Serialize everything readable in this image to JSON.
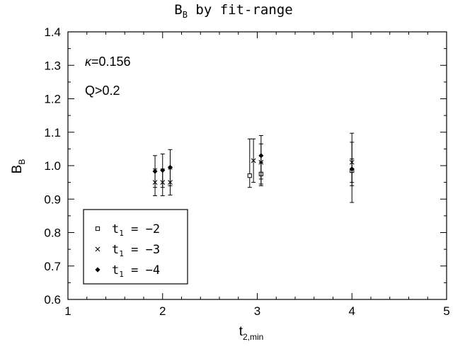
{
  "chart_data": {
    "type": "scatter",
    "title": {
      "main": "B",
      "sub": "B",
      "rest": " by fit-range"
    },
    "xlabel": {
      "main": "t",
      "sub": "2,min"
    },
    "ylabel": {
      "main": "B",
      "sub": "B"
    },
    "xlim": [
      1,
      5
    ],
    "ylim": [
      0.6,
      1.4
    ],
    "x_ticks": [
      1,
      2,
      3,
      4,
      5
    ],
    "y_ticks": [
      0.6,
      0.7,
      0.8,
      0.9,
      1.0,
      1.1,
      1.2,
      1.3,
      1.4
    ],
    "x_tick_labels": [
      "1",
      "2",
      "3",
      "4",
      "5"
    ],
    "y_tick_labels": [
      "0.6",
      "0.7",
      "0.8",
      "0.9",
      "1.0",
      "1.1",
      "1.2",
      "1.3",
      "1.4"
    ],
    "grid": false,
    "legend_position": "bottom-left",
    "annotations": [
      {
        "symbol": "κ",
        "text": "=0.156"
      },
      {
        "symbol": "",
        "text": "Q>0.2"
      }
    ],
    "series": [
      {
        "legend": {
          "main": "t",
          "sub": "1",
          "rest": " =  −2"
        },
        "marker": "square",
        "points": [
          {
            "x": 2.92,
            "y": 0.97,
            "ylo": 0.935,
            "yhi": 1.08
          },
          {
            "x": 3.04,
            "y": 0.975,
            "ylo": 0.94,
            "yhi": 1.01
          },
          {
            "x": 4.0,
            "y": 0.985,
            "ylo": 0.95,
            "yhi": 1.02
          }
        ]
      },
      {
        "legend": {
          "main": "t",
          "sub": "1",
          "rest": " =  −3"
        },
        "marker": "cross",
        "points": [
          {
            "x": 1.92,
            "y": 0.95,
            "ylo": 0.91,
            "yhi": 0.99
          },
          {
            "x": 2.0,
            "y": 0.95,
            "ylo": 0.91,
            "yhi": 0.99
          },
          {
            "x": 2.08,
            "y": 0.95,
            "ylo": 0.912,
            "yhi": 0.99
          },
          {
            "x": 2.96,
            "y": 1.015,
            "ylo": 0.95,
            "yhi": 1.08
          },
          {
            "x": 3.04,
            "y": 1.01,
            "ylo": 0.945,
            "yhi": 1.065
          },
          {
            "x": 4.0,
            "y": 1.01,
            "ylo": 0.94,
            "yhi": 1.07
          }
        ]
      },
      {
        "legend": {
          "main": "t",
          "sub": "1",
          "rest": " =  −4"
        },
        "marker": "diamond",
        "points": [
          {
            "x": 1.92,
            "y": 0.983,
            "ylo": 0.935,
            "yhi": 1.03
          },
          {
            "x": 2.0,
            "y": 0.986,
            "ylo": 0.935,
            "yhi": 1.035
          },
          {
            "x": 2.08,
            "y": 0.995,
            "ylo": 0.94,
            "yhi": 1.048
          },
          {
            "x": 3.04,
            "y": 1.03,
            "ylo": 0.96,
            "yhi": 1.09
          },
          {
            "x": 4.0,
            "y": 0.99,
            "ylo": 0.89,
            "yhi": 1.097
          }
        ]
      }
    ]
  }
}
